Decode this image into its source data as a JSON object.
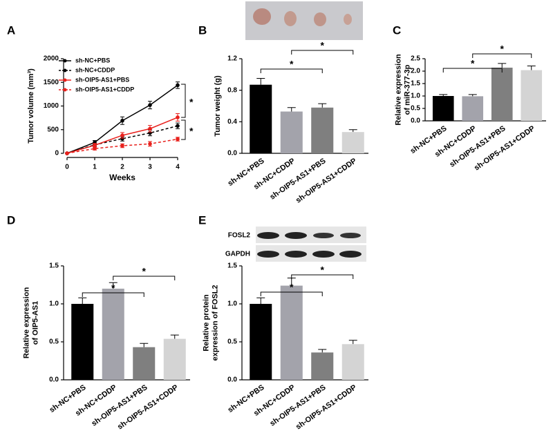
{
  "chart_data": [
    {
      "type": "line",
      "panel_label": "A",
      "ylabel": "Tumor volume (mm³)",
      "xlabel": "Weeks",
      "x": [
        0,
        1,
        2,
        3,
        4
      ],
      "xlim": [
        0,
        4
      ],
      "xticks": [
        0,
        1,
        2,
        3,
        4
      ],
      "ylim": [
        0,
        2000
      ],
      "yticks": [
        0,
        500,
        1000,
        1500,
        2000
      ],
      "series": [
        {
          "name": "sh-NC+PBS",
          "color": "#000000",
          "dashed": false,
          "values": [
            0,
            230,
            690,
            1020,
            1440
          ],
          "errors": [
            0,
            40,
            80,
            80,
            70
          ]
        },
        {
          "name": "sh-NC+CDDP",
          "color": "#000000",
          "dashed": true,
          "values": [
            0,
            180,
            310,
            430,
            580
          ],
          "errors": [
            0,
            30,
            50,
            60,
            60
          ]
        },
        {
          "name": "sh-OIP5-AS1+PBS",
          "color": "#e8201c",
          "dashed": false,
          "values": [
            0,
            170,
            380,
            520,
            760
          ],
          "errors": [
            0,
            40,
            60,
            70,
            80
          ]
        },
        {
          "name": "sh-OIP5-AS1+CDDP",
          "color": "#e8201c",
          "dashed": true,
          "values": [
            0,
            100,
            160,
            200,
            300
          ],
          "errors": [
            0,
            30,
            40,
            50,
            40
          ]
        }
      ],
      "annotations": [
        "*",
        "*"
      ]
    },
    {
      "type": "bar",
      "panel_label": "B",
      "ylabel": "Tumor weight (g)",
      "categories": [
        "sh-NC+PBS",
        "sh-NC+CDDP",
        "sh-OIP5-AS1+PBS",
        "sh-OIP5-AS1+CDDP"
      ],
      "values": [
        0.87,
        0.53,
        0.58,
        0.27
      ],
      "errors": [
        0.08,
        0.05,
        0.05,
        0.03
      ],
      "colors": [
        "#000000",
        "#a3a3ab",
        "#7f7f7f",
        "#d4d4d4"
      ],
      "ylim": [
        0,
        1.2
      ],
      "yticks": [
        {
          "value": 0,
          "label": "0.0"
        },
        0.4,
        0.8,
        1.2
      ],
      "annotations": [
        "*",
        "*"
      ]
    },
    {
      "type": "bar",
      "panel_label": "C",
      "ylabel": [
        "Relative expression",
        "of miR-377-3p"
      ],
      "categories": [
        "sh-NC+PBS",
        "sh-NC+CDDP",
        "sh-OIP5-AS1+PBS",
        "sh-OIP5-AS1+CDDP"
      ],
      "values": [
        1.0,
        0.99,
        2.14,
        2.04
      ],
      "errors": [
        0.06,
        0.07,
        0.17,
        0.17
      ],
      "colors": [
        "#000000",
        "#a3a3ab",
        "#7f7f7f",
        "#d4d4d4"
      ],
      "ylim": [
        0,
        2.5
      ],
      "yticks": [
        {
          "value": 0,
          "label": "0.0"
        },
        0.5,
        {
          "value": 1,
          "label": "1.0"
        },
        1.5,
        {
          "value": 2,
          "label": "2.0"
        },
        2.5
      ],
      "annotations": [
        "*",
        "*"
      ]
    },
    {
      "type": "bar",
      "panel_label": "D",
      "ylabel": [
        "Relative expression",
        "of OIP5-AS1"
      ],
      "categories": [
        "sh-NC+PBS",
        "sh-NC+CDDP",
        "sh-OIP5-AS1+PBS",
        "sh-OIP5-AS1+CDDP"
      ],
      "values": [
        1.0,
        1.2,
        0.43,
        0.54
      ],
      "errors": [
        0.08,
        0.08,
        0.05,
        0.05
      ],
      "colors": [
        "#000000",
        "#a3a3ab",
        "#7f7f7f",
        "#d4d4d4"
      ],
      "ylim": [
        0,
        1.5
      ],
      "yticks": [
        {
          "value": 0,
          "label": "0.0"
        },
        0.5,
        {
          "value": 1,
          "label": "1.0"
        },
        1.5
      ],
      "annotations": [
        "*",
        "*"
      ]
    },
    {
      "type": "bar",
      "panel_label": "E",
      "ylabel": [
        "Relative protein",
        "expression of FOSL2"
      ],
      "blot_labels": [
        "FOSL2",
        "GAPDH"
      ],
      "categories": [
        "sh-NC+PBS",
        "sh-NC+CDDP",
        "sh-OIP5-AS1+PBS",
        "sh-OIP5-AS1+CDDP"
      ],
      "values": [
        1.0,
        1.24,
        0.36,
        0.47
      ],
      "errors": [
        0.08,
        0.1,
        0.04,
        0.05
      ],
      "colors": [
        "#000000",
        "#a3a3ab",
        "#7f7f7f",
        "#d4d4d4"
      ],
      "ylim": [
        0,
        1.5
      ],
      "yticks": [
        {
          "value": 0,
          "label": "0.0"
        },
        0.5,
        {
          "value": 1,
          "label": "1.0"
        },
        1.5
      ],
      "annotations": [
        "*",
        "*"
      ]
    }
  ]
}
